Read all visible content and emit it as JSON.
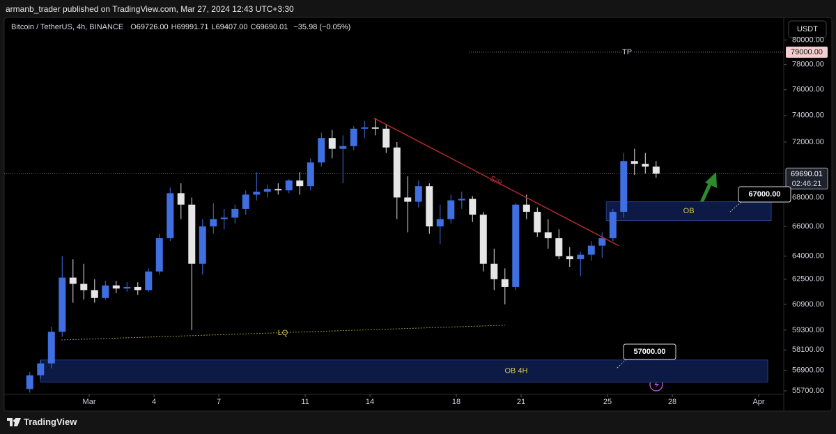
{
  "header": {
    "publisher": "armanb_trader published on TradingView.com, Mar 27, 2024 12:43 UTC+3:30"
  },
  "legend": {
    "symbol": "Bitcoin / TetherUS, 4h, BINANCE",
    "items": [
      {
        "key": "O",
        "text": "69726.00"
      },
      {
        "key": "H",
        "text": "69991.71"
      },
      {
        "key": "L",
        "text": "69407.00"
      },
      {
        "key": "C",
        "text": "69690.01"
      }
    ],
    "change": "−35.98 (−0.05%)"
  },
  "currency_button": "USDT",
  "footer": "TradingView",
  "chart_data": {
    "type": "candlestick",
    "x": [
      -2.75,
      -2.25,
      -1.75,
      -1.25,
      -0.75,
      -0.25,
      0.25,
      0.75,
      1.25,
      1.75,
      2.25,
      2.75,
      3.25,
      3.75,
      4.25,
      4.75,
      5.25,
      5.75,
      6.25,
      6.75,
      7.25,
      7.75,
      8.25,
      8.75,
      9.25,
      9.75,
      10.25,
      10.75,
      11.25,
      11.75,
      12.25,
      12.75,
      13.25,
      13.75,
      14.25,
      14.75,
      15.25,
      15.75,
      16.25,
      16.75,
      17.25,
      17.75,
      18.25,
      18.75,
      19.25,
      19.75,
      20.25,
      20.75,
      21.25,
      21.75,
      22.25,
      22.75,
      23.25,
      23.75,
      24.25,
      24.75,
      25.25,
      25.75,
      26.25
    ],
    "open": [
      55800,
      56600,
      57300,
      59200,
      62600,
      62200,
      61800,
      61300,
      62100,
      61900,
      62000,
      61800,
      63000,
      65200,
      68300,
      67500,
      63500,
      66000,
      66500,
      66600,
      67200,
      68200,
      68400,
      68600,
      68500,
      69200,
      68800,
      70500,
      72300,
      71500,
      71700,
      73000,
      73100,
      73000,
      71600,
      68000,
      67700,
      68800,
      66000,
      66500,
      67800,
      67900,
      66800,
      63500,
      62500,
      62000,
      67500,
      67000,
      65600,
      65200,
      64000,
      63800,
      64100,
      64700,
      65200,
      67000,
      70600,
      70400,
      70200
    ],
    "high": [
      56800,
      57500,
      59500,
      64000,
      63800,
      63500,
      62500,
      62400,
      62400,
      62300,
      62300,
      63200,
      65500,
      68700,
      69000,
      68000,
      66500,
      67600,
      67200,
      67500,
      68500,
      69800,
      68900,
      69000,
      69300,
      69800,
      70800,
      72700,
      72900,
      72500,
      73200,
      73600,
      73800,
      73300,
      72000,
      69500,
      69200,
      69000,
      67500,
      68200,
      68400,
      68100,
      67000,
      64500,
      63200,
      67600,
      68200,
      67300,
      66500,
      65800,
      64600,
      64300,
      65000,
      65600,
      67200,
      71200,
      71500,
      71200,
      70600
    ],
    "low": [
      55600,
      56400,
      57000,
      58900,
      61000,
      61200,
      61000,
      61200,
      61600,
      61700,
      61500,
      61700,
      62800,
      65000,
      66500,
      59300,
      62800,
      65500,
      65800,
      66200,
      66800,
      67800,
      68000,
      68200,
      68300,
      68200,
      68500,
      70200,
      70800,
      69000,
      71400,
      72300,
      72500,
      71200,
      66500,
      65600,
      67300,
      65500,
      64800,
      66200,
      67200,
      66300,
      63000,
      61800,
      60900,
      61800,
      66500,
      65300,
      64500,
      63800,
      63300,
      62700,
      63700,
      63900,
      65000,
      66600,
      69600,
      69700,
      69400
    ],
    "close": [
      56600,
      57300,
      59200,
      62600,
      62200,
      61800,
      61300,
      62100,
      61900,
      62000,
      61800,
      63000,
      65200,
      68300,
      67500,
      63500,
      66000,
      66500,
      66600,
      67200,
      68200,
      68400,
      68600,
      68500,
      69200,
      68800,
      70500,
      72300,
      71500,
      71700,
      73000,
      73100,
      73000,
      71600,
      68000,
      67700,
      68800,
      66000,
      66500,
      67800,
      67900,
      66800,
      63500,
      62500,
      62000,
      67500,
      67000,
      65600,
      65200,
      64000,
      63800,
      64100,
      64700,
      65200,
      67000,
      70600,
      70400,
      70200,
      69690
    ],
    "up_color": "#3f6fe0",
    "down_color": "#e6e6e6",
    "log_scale": true,
    "grid": false,
    "xlim": [
      -4.13,
      32.16
    ],
    "xticks": [
      {
        "value": 0,
        "label": "Mar"
      },
      {
        "value": 3,
        "label": "4"
      },
      {
        "value": 6,
        "label": "7"
      },
      {
        "value": 10,
        "label": "11"
      },
      {
        "value": 13,
        "label": "14"
      },
      {
        "value": 17,
        "label": "18"
      },
      {
        "value": 20,
        "label": "21"
      },
      {
        "value": 24,
        "label": "25"
      },
      {
        "value": 27,
        "label": "28"
      },
      {
        "value": 31,
        "label": "Apr"
      }
    ],
    "ylim": [
      55500,
      80600
    ],
    "yticks": [
      {
        "value": 80000,
        "label": "80000.00"
      },
      {
        "value": 78000,
        "label": "78000.00"
      },
      {
        "value": 76000,
        "label": "76000.00"
      },
      {
        "value": 74000,
        "label": "74000.00"
      },
      {
        "value": 72000,
        "label": "72000.00"
      },
      {
        "value": 68000,
        "label": "68000.00"
      },
      {
        "value": 66000,
        "label": "66000.00"
      },
      {
        "value": 64000,
        "label": "64000.00"
      },
      {
        "value": 62500,
        "label": "62500.00"
      },
      {
        "value": 60900,
        "label": "60900.00"
      },
      {
        "value": 59300,
        "label": "59300.00"
      },
      {
        "value": 58100,
        "label": "58100.00"
      },
      {
        "value": 56900,
        "label": "56900.00"
      },
      {
        "value": 55700,
        "label": "55700.00"
      }
    ],
    "last_price": {
      "value": 69690.01,
      "label": "69690.01"
    },
    "countdown": "02:46:21",
    "tp": {
      "text": "TP",
      "x_start": 17.58,
      "price": {
        "value": 79000,
        "label": "79000.00"
      }
    },
    "sr": {
      "text": "S/R",
      "x": [
        13.19,
        24.52
      ],
      "y": [
        73800,
        64700
      ],
      "color": "#b0282a"
    },
    "lq": {
      "text": "LQ",
      "x": [
        -1.29,
        19.26
      ],
      "y": [
        58700,
        59600
      ],
      "color": "#9c8f3a"
    },
    "zones": [
      {
        "text": "OB",
        "x": [
          23.94,
          31.58
        ],
        "y": [
          66400,
          67700
        ]
      },
      {
        "text": "OB 4H",
        "x": [
          -2.26,
          31.42
        ],
        "y": [
          56200,
          57500
        ]
      }
    ],
    "callouts": [
      {
        "value": 67000,
        "label": "67000.00"
      },
      {
        "value": 57000,
        "label": "57000.00"
      }
    ]
  }
}
